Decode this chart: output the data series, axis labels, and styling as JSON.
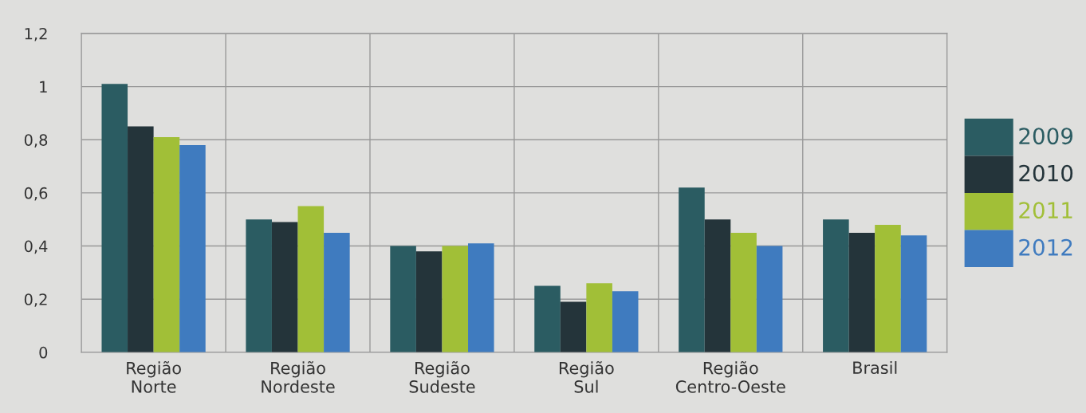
{
  "chart_data": {
    "type": "bar",
    "categories": [
      "Região\nNorte",
      "Região\nNordeste",
      "Região\nSudeste",
      "Região\nSul",
      "Região\nCentro-Oeste",
      "Brasil"
    ],
    "series": [
      {
        "name": "2009",
        "color": "#2b5c62",
        "values": [
          1.01,
          0.5,
          0.4,
          0.25,
          0.62,
          0.5
        ]
      },
      {
        "name": "2010",
        "color": "#24343a",
        "values": [
          0.85,
          0.49,
          0.38,
          0.19,
          0.5,
          0.45
        ]
      },
      {
        "name": "2011",
        "color": "#a1bf37",
        "values": [
          0.81,
          0.55,
          0.4,
          0.26,
          0.45,
          0.48
        ]
      },
      {
        "name": "2012",
        "color": "#3f7bbf",
        "values": [
          0.78,
          0.45,
          0.41,
          0.23,
          0.4,
          0.44
        ]
      }
    ],
    "ylim": [
      0,
      1.2
    ],
    "yticks": [
      0,
      {
        "value": 0.2,
        "label": "0,2"
      },
      {
        "value": 0.4,
        "label": "0,4"
      },
      {
        "value": 0.6,
        "label": "0,6"
      },
      {
        "value": 0.8,
        "label": "0,8"
      },
      1,
      {
        "value": 1.2,
        "label": "1,2"
      }
    ],
    "grid": true,
    "legend": "right"
  }
}
